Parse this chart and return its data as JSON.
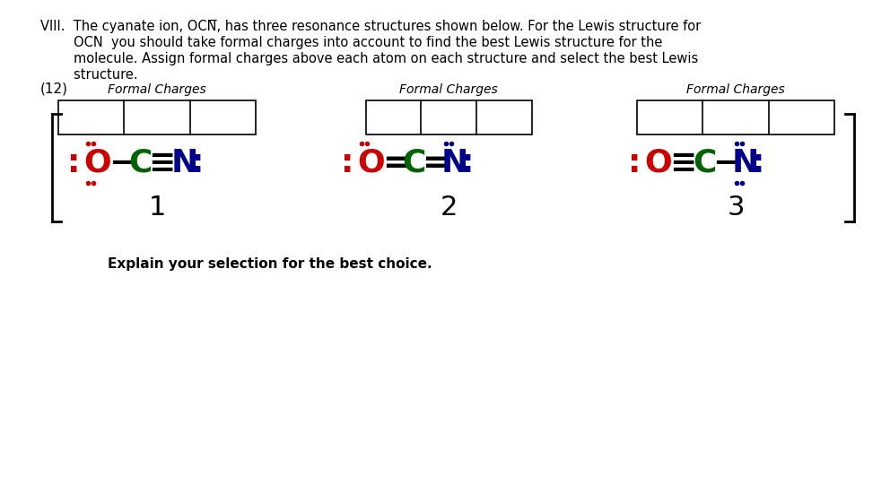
{
  "bg_color": "#ffffff",
  "O_color": "#cc0000",
  "C_color": "#006400",
  "N_color": "#00008b",
  "black": "#000000",
  "header_line1": "VIII.  The cyanate ion, OCN̅, has three resonance structures shown below. For the Lewis structure for",
  "header_line2": "        OCN  you should take formal charges into account to find the best Lewis structure for the",
  "header_line3": "        molecule. Assign formal charges above each atom on each structure and select the best Lewis",
  "header_line4": "        structure.",
  "points_label": "(12)",
  "formal_charges": "Formal Charges",
  "explain": "Explain your selection for the best choice.",
  "struct1_num": "1",
  "struct2_num": "2",
  "struct3_num": "3",
  "formula_fontsize": 26,
  "dot_size": 4,
  "header_fontsize": 10.5,
  "label_fontsize": 10,
  "number_fontsize": 22,
  "explain_fontsize": 11
}
